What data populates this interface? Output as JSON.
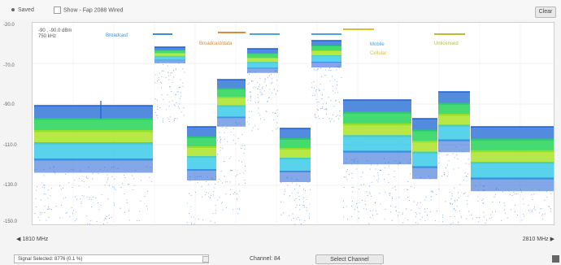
{
  "toolbar": {
    "title": "Saved",
    "checkbox_label": "Show - Fap 2088 Wired",
    "button_label": "Clear"
  },
  "plot": {
    "y_labels": [
      "-20.0",
      "-70.0",
      "-90.0",
      "-110.0",
      "-130.0",
      "-150.0"
    ],
    "readout_line1": "-90 , -90.0 dBm",
    "readout_line2": "750 kHz",
    "legend": [
      {
        "label": "Broadcast",
        "color": "#3a8fd8"
      },
      {
        "label": "Broadcast/data",
        "color": "#e08a30"
      },
      {
        "label": "Mobile",
        "color": "#4aa2e0"
      },
      {
        "label": "Cellular",
        "color": "#d6c235"
      },
      {
        "label": "Unlicensed",
        "color": "#b8bf30"
      }
    ],
    "colors": {
      "low": "#1f5fd4",
      "mid": "#22c3e6",
      "hi": "#a6e21a",
      "top": "#26d35a",
      "peak": "#3578d8"
    }
  },
  "axis": {
    "left_label": "1810 MHz",
    "right_label": "2810 MHz",
    "left_icon": "chevron-left-icon",
    "right_icon": "chevron-right-icon"
  },
  "status": {
    "select_value": "Signal Selected: 8776 (0.1 %)",
    "channel_text": "Channel: 84",
    "button_label": "Select Channel"
  }
}
